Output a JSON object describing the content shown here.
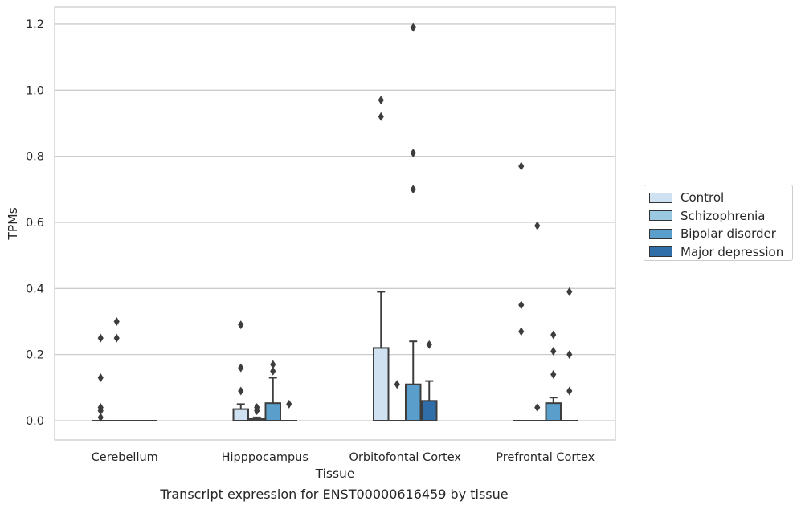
{
  "chart_data": {
    "type": "box",
    "caption": "Transcript expression for ENST00000616459 by tissue",
    "xlabel": "Tissue",
    "ylabel": "TPMs",
    "ylim": [
      -0.058,
      1.25
    ],
    "yticks": [
      0.0,
      0.2,
      0.4,
      0.6,
      0.8,
      1.0,
      1.2
    ],
    "ytick_labels": [
      "0.0",
      "0.2",
      "0.4",
      "0.6",
      "0.8",
      "1.0",
      "1.2"
    ],
    "grid": "horizontal",
    "legend_position": "right",
    "categories": [
      "Cerebellum",
      "Hipppocampus",
      "Orbitofontal Cortex",
      "Prefrontal Cortex"
    ],
    "series": [
      {
        "name": "Control",
        "color": "#d0e1f2",
        "boxes": [
          {
            "q1": 0,
            "median": 0,
            "q3": 0,
            "whislo": 0,
            "whishi": 0,
            "fliers": [
              0.25,
              0.13,
              0.04,
              0.03,
              0.01
            ]
          },
          {
            "q1": 0,
            "median": 0,
            "q3": 0.035,
            "whislo": 0,
            "whishi": 0.05,
            "fliers": [
              0.29,
              0.16,
              0.09
            ]
          },
          {
            "q1": 0,
            "median": 0,
            "q3": 0.22,
            "whislo": 0,
            "whishi": 0.39,
            "fliers": [
              0.92,
              0.97
            ]
          },
          {
            "q1": 0,
            "median": 0,
            "q3": 0,
            "whislo": 0,
            "whishi": 0,
            "fliers": [
              0.77,
              0.35,
              0.27
            ]
          }
        ]
      },
      {
        "name": "Schizophrenia",
        "color": "#9ac8e0",
        "boxes": [
          {
            "q1": 0,
            "median": 0,
            "q3": 0,
            "whislo": 0,
            "whishi": 0,
            "fliers": [
              0.3,
              0.25
            ]
          },
          {
            "q1": 0,
            "median": 0,
            "q3": 0.005,
            "whislo": 0,
            "whishi": 0.01,
            "fliers": [
              0.04,
              0.03
            ]
          },
          {
            "q1": 0,
            "median": 0,
            "q3": 0,
            "whislo": 0,
            "whishi": 0,
            "fliers": [
              0.11
            ]
          },
          {
            "q1": 0,
            "median": 0,
            "q3": 0,
            "whislo": 0,
            "whishi": 0,
            "fliers": [
              0.59,
              0.04
            ]
          }
        ]
      },
      {
        "name": "Bipolar disorder",
        "color": "#5a9fcc",
        "boxes": [
          {
            "q1": 0,
            "median": 0,
            "q3": 0,
            "whislo": 0,
            "whishi": 0,
            "fliers": []
          },
          {
            "q1": 0,
            "median": 0,
            "q3": 0.053,
            "whislo": 0,
            "whishi": 0.13,
            "fliers": [
              0.17,
              0.15
            ]
          },
          {
            "q1": 0,
            "median": 0,
            "q3": 0.11,
            "whislo": 0,
            "whishi": 0.24,
            "fliers": [
              0.7,
              0.81,
              1.19
            ]
          },
          {
            "q1": 0,
            "median": 0,
            "q3": 0.053,
            "whislo": 0,
            "whishi": 0.07,
            "fliers": [
              0.26,
              0.21,
              0.14
            ]
          }
        ]
      },
      {
        "name": "Major depression",
        "color": "#2f6ea8",
        "boxes": [
          {
            "q1": 0,
            "median": 0,
            "q3": 0,
            "whislo": 0,
            "whishi": 0,
            "fliers": []
          },
          {
            "q1": 0,
            "median": 0,
            "q3": 0,
            "whislo": 0,
            "whishi": 0,
            "fliers": [
              0.05
            ]
          },
          {
            "q1": 0,
            "median": 0,
            "q3": 0.06,
            "whislo": 0,
            "whishi": 0.12,
            "fliers": [
              0.23
            ]
          },
          {
            "q1": 0,
            "median": 0,
            "q3": 0,
            "whislo": 0,
            "whishi": 0,
            "fliers": [
              0.39,
              0.2,
              0.09
            ]
          }
        ]
      }
    ]
  }
}
